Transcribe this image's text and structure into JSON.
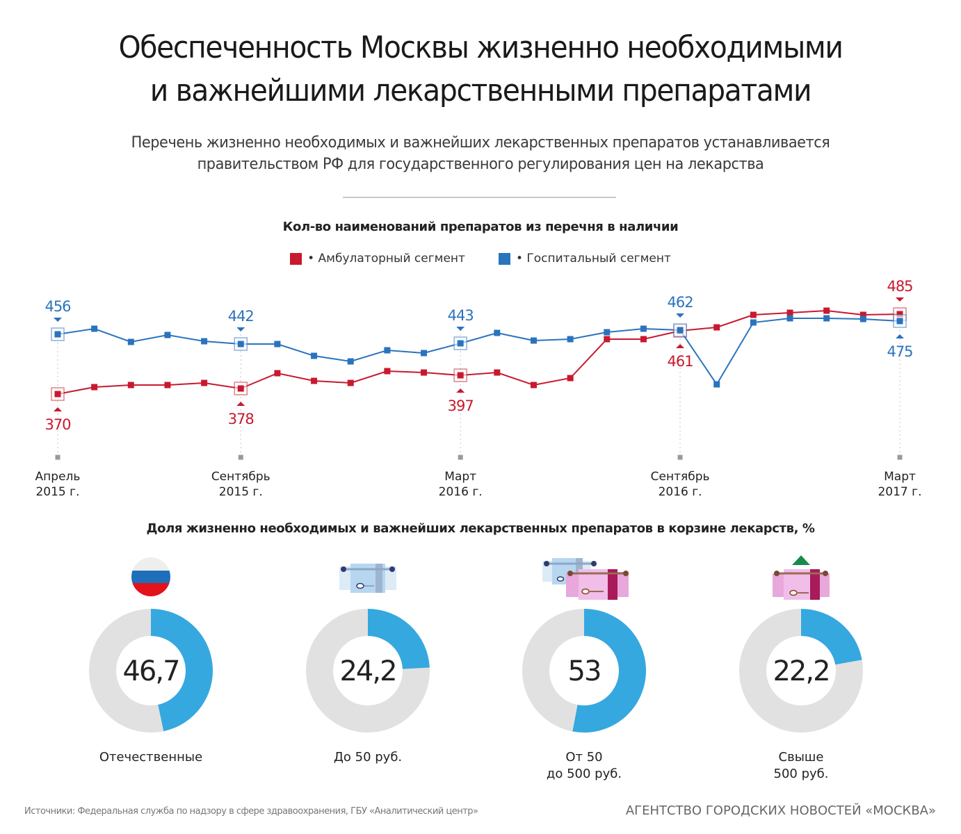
{
  "header": {
    "title_line1": "Обеспеченность Москвы жизненно необходимыми",
    "title_line2": "и важнейшими лекарственными препаратами",
    "subtitle_line1": "Перечень жизненно необходимых и важнейших лекарственных препаратов устанавливается",
    "subtitle_line2": "правительством РФ для государственного регулирования цен на лекарства"
  },
  "colors": {
    "ambulatory": "#c8192e",
    "hospital": "#2a73bd",
    "donut_fill": "#35a8e0",
    "donut_bg": "#e1e1e1",
    "axis_tick": "#9a9a9a"
  },
  "chart_data": [
    {
      "type": "line",
      "title": "Кол-во наименований препаратов из перечня в наличии",
      "xlabel": "",
      "ylabel": "",
      "grid": false,
      "legend_position": "top-center",
      "x": [
        "Апр 2015",
        "Май 2015",
        "Июн 2015",
        "Июл 2015",
        "Авг 2015",
        "Сен 2015",
        "Окт 2015",
        "Ноя 2015",
        "Дек 2015",
        "Янв 2016",
        "Фев 2016",
        "Мар 2016",
        "Апр 2016",
        "Май 2016",
        "Июн 2016",
        "Июл 2016",
        "Авг 2016",
        "Сен 2016",
        "Окт 2016",
        "Ноя 2016",
        "Дек 2016",
        "Янв 2017",
        "Фев 2017",
        "Мар 2017"
      ],
      "tick_labels": [
        {
          "index": 0,
          "line1": "Апрель",
          "line2": "2015 г."
        },
        {
          "index": 5,
          "line1": "Сентябрь",
          "line2": "2015 г."
        },
        {
          "index": 11,
          "line1": "Март",
          "line2": "2016 г."
        },
        {
          "index": 17,
          "line1": "Сентябрь",
          "line2": "2016 г."
        },
        {
          "index": 23,
          "line1": "Март",
          "line2": "2017 г."
        }
      ],
      "ylim": [
        360,
        500
      ],
      "series": [
        {
          "name": "Амбулаторный сегмент",
          "legend_label": "• Амбулаторный сегмент",
          "color_key": "ambulatory",
          "values": [
            370,
            380,
            383,
            383,
            386,
            378,
            400,
            389,
            386,
            403,
            401,
            397,
            401,
            383,
            393,
            449,
            449,
            461,
            466,
            484,
            487,
            490,
            484,
            485
          ],
          "annotations": [
            {
              "index": 0,
              "label": "370",
              "position": "below"
            },
            {
              "index": 5,
              "label": "378",
              "position": "below"
            },
            {
              "index": 11,
              "label": "397",
              "position": "below"
            },
            {
              "index": 17,
              "label": "461",
              "position": "below"
            },
            {
              "index": 23,
              "label": "485",
              "position": "above"
            }
          ]
        },
        {
          "name": "Госпитальный сегмент",
          "legend_label": "• Госпитальный сегмент",
          "color_key": "hospital",
          "values": [
            456,
            464,
            445,
            455,
            446,
            442,
            442,
            425,
            417,
            433,
            429,
            443,
            458,
            447,
            449,
            459,
            464,
            462,
            384,
            473,
            479,
            479,
            478,
            475
          ],
          "annotations": [
            {
              "index": 0,
              "label": "456",
              "position": "above"
            },
            {
              "index": 5,
              "label": "442",
              "position": "above"
            },
            {
              "index": 11,
              "label": "443",
              "position": "above"
            },
            {
              "index": 17,
              "label": "462",
              "position": "above"
            },
            {
              "index": 23,
              "label": "475",
              "position": "below"
            }
          ]
        }
      ]
    },
    {
      "type": "pie",
      "title": "Доля жизненно необходимых и важнейших лекарственных препаратов в корзине лекарств, %",
      "unit": "%",
      "slices": [
        {
          "category": "Отечественные",
          "label_lines": [
            "Отечественные"
          ],
          "value": 46.7,
          "display": "46,7",
          "icon": "russian-flag-icon"
        },
        {
          "category": "До 50 руб.",
          "label_lines": [
            "До 50 руб."
          ],
          "value": 24.2,
          "display": "24,2",
          "icon": "single-banknote-icon"
        },
        {
          "category": "От 50 до 500 руб.",
          "label_lines": [
            "От 50",
            "до 500 руб."
          ],
          "value": 53,
          "display": "53",
          "icon": "two-banknotes-icon"
        },
        {
          "category": "Свыше 500 руб.",
          "label_lines": [
            "Свыше",
            "500 руб."
          ],
          "value": 22.2,
          "display": "22,2",
          "icon": "banknote-arrow-up-icon"
        }
      ]
    }
  ],
  "footer": {
    "source": "Источники: Федеральная служба по надзору в сфере здравоохранения, ГБУ «Аналитический центр»",
    "agency": "АГЕНТСТВО ГОРОДСКИХ НОВОСТЕЙ «МОСКВА»"
  }
}
